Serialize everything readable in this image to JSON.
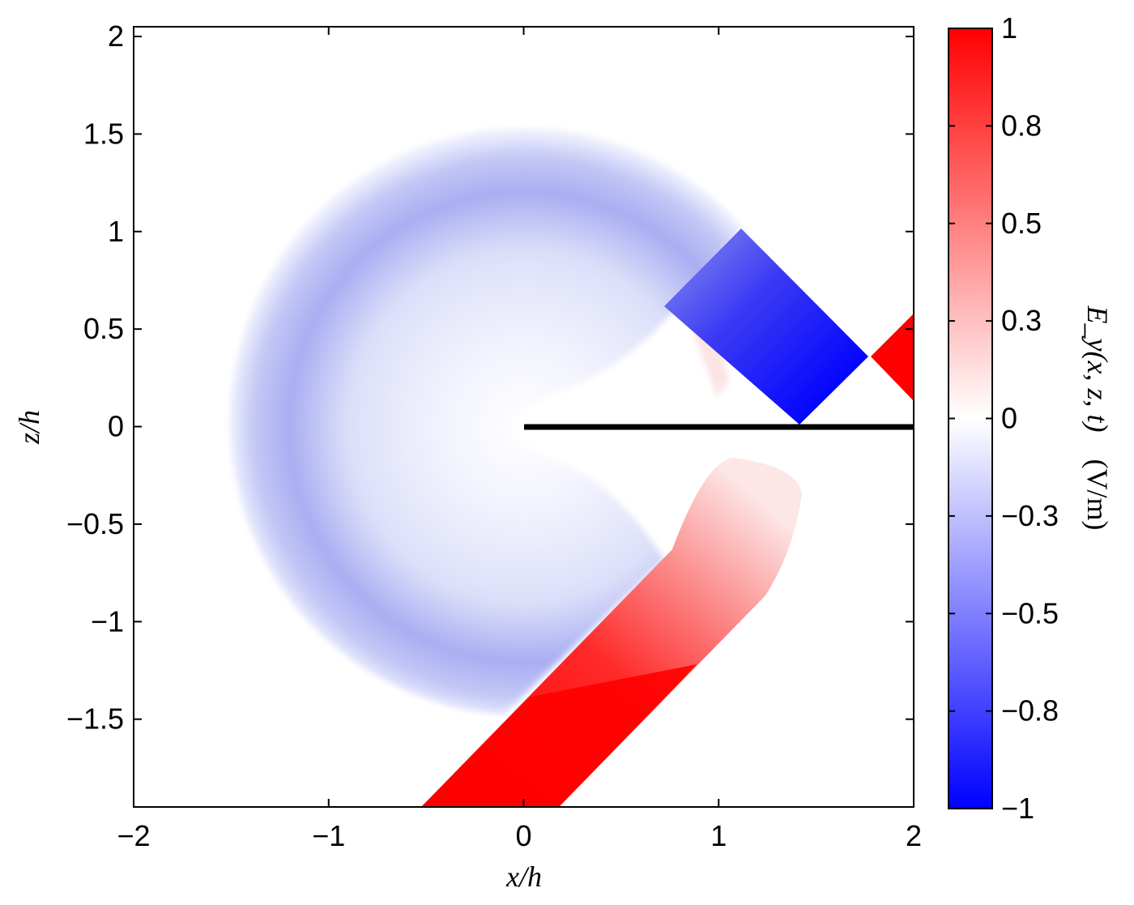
{
  "chart_data": {
    "type": "heatmap",
    "title": "",
    "xlabel": "x/h",
    "ylabel": "z/h",
    "xlim": [
      -2,
      2
    ],
    "ylim": [
      -1.95,
      2.05
    ],
    "xticks": [
      {
        "value": -2,
        "label": "−2"
      },
      {
        "value": -1,
        "label": "−1"
      },
      {
        "value": 0,
        "label": "0"
      },
      {
        "value": 1,
        "label": "1"
      },
      {
        "value": 2,
        "label": "2"
      }
    ],
    "yticks": [
      {
        "value": 2,
        "label": "2"
      },
      {
        "value": 1.5,
        "label": "1.5"
      },
      {
        "value": 1,
        "label": "1"
      },
      {
        "value": 0.5,
        "label": "0.5"
      },
      {
        "value": 0,
        "label": "0"
      },
      {
        "value": -0.5,
        "label": "−0.5"
      },
      {
        "value": -1,
        "label": "−1"
      },
      {
        "value": -1.5,
        "label": "−1.5"
      }
    ],
    "colorbar": {
      "label_main": "E_y(x, z, t)",
      "label_unit": "(V/m)",
      "range": [
        -1,
        1
      ],
      "colormap": {
        "negative": "#0000ff",
        "zero": "#ffffff",
        "positive": "#ff0000"
      },
      "ticks": [
        {
          "value": 1,
          "label": "1"
        },
        {
          "value": 0.75,
          "label": "0.8"
        },
        {
          "value": 0.5,
          "label": "0.5"
        },
        {
          "value": 0.25,
          "label": "0.3"
        },
        {
          "value": 0,
          "label": "0"
        },
        {
          "value": -0.25,
          "label": "−0.3"
        },
        {
          "value": -0.5,
          "label": "−0.5"
        },
        {
          "value": -0.75,
          "label": "−0.8"
        },
        {
          "value": -1,
          "label": "−1"
        }
      ]
    },
    "conductor": {
      "x_start": 0,
      "x_end": 2,
      "z": 0
    },
    "field_regions": [
      {
        "name": "diffracted-cylindrical-wave",
        "sign": "negative",
        "center": [
          0,
          0
        ],
        "outer_radius": 1.5,
        "inner_radius": 0.95,
        "peak_value": -0.35
      },
      {
        "name": "reflected-beam-upper",
        "sign": "negative",
        "from": [
          1.41,
          0
        ],
        "to": [
          0.75,
          0.66
        ],
        "width": 0.5,
        "peak_value": -1
      },
      {
        "name": "incident-beam-upper-right",
        "sign": "positive",
        "from": [
          2,
          0.35
        ],
        "to": [
          1.78,
          0.36
        ],
        "width": 0.3,
        "peak_value": 1
      },
      {
        "name": "transmitted-beam-lower",
        "sign": "positive",
        "from": [
          -0.2,
          -1.95
        ],
        "to": [
          0.75,
          -0.68
        ],
        "width": 0.65,
        "peak_value": 1
      }
    ]
  }
}
